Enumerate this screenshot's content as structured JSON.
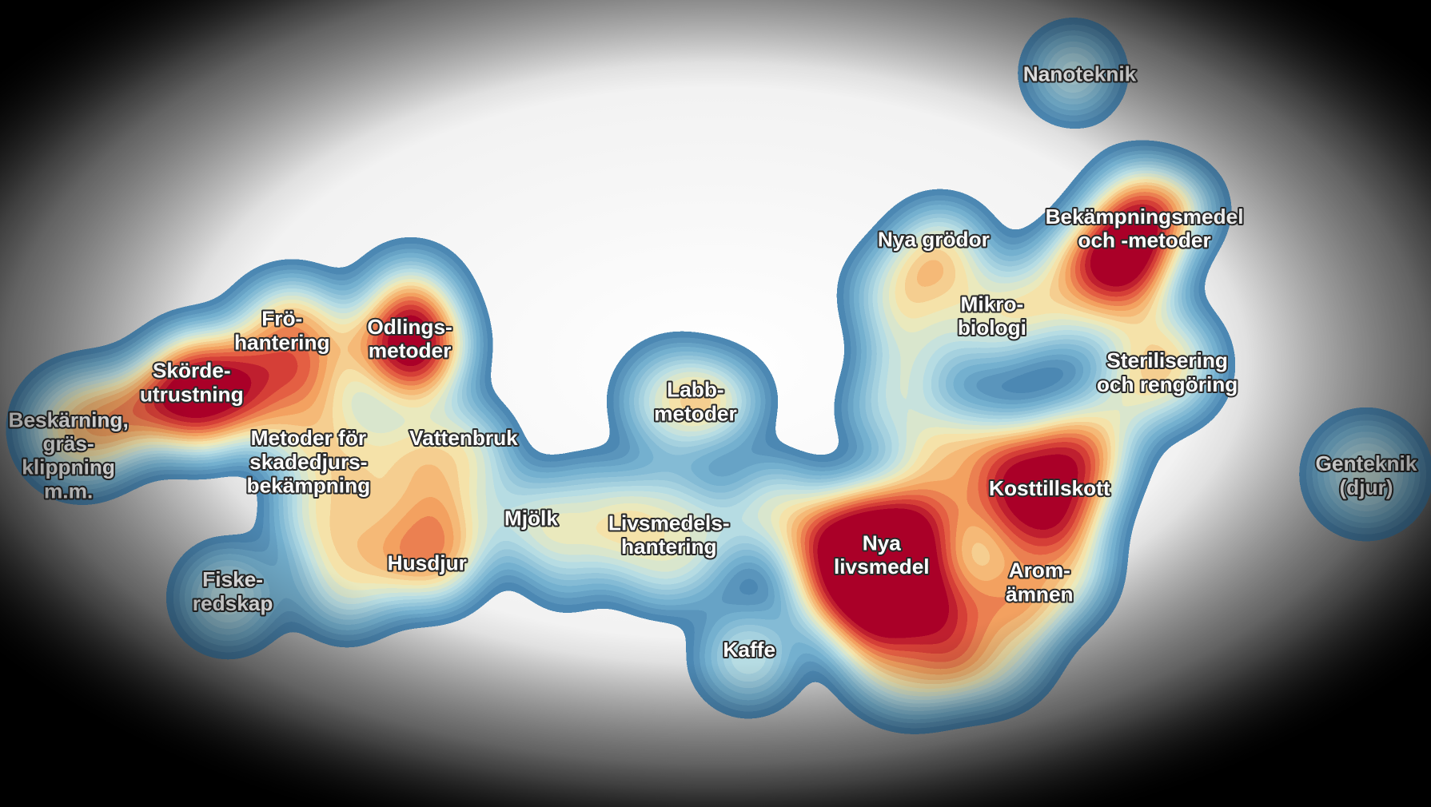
{
  "labels": [
    {
      "lines": [
        "Nanoteknik"
      ]
    },
    {
      "lines": [
        "Bekämpningsmedel",
        "och -metoder"
      ]
    },
    {
      "lines": [
        "Nya grödor"
      ]
    },
    {
      "lines": [
        "Mikro-",
        "biologi"
      ]
    },
    {
      "lines": [
        "Sterilisering",
        "och rengöring"
      ]
    },
    {
      "lines": [
        "Kosttillskott"
      ]
    },
    {
      "lines": [
        "Arom-",
        "ämnen"
      ]
    },
    {
      "lines": [
        "Nya",
        "livsmedel"
      ]
    },
    {
      "lines": [
        "Kaffe"
      ]
    },
    {
      "lines": [
        "Livsmedels-",
        "hantering"
      ]
    },
    {
      "lines": [
        "Labb-",
        "metoder"
      ]
    },
    {
      "lines": [
        "Mjölk"
      ]
    },
    {
      "lines": [
        "Genteknik",
        "(djur)"
      ]
    },
    {
      "lines": [
        "Vattenbruk"
      ]
    },
    {
      "lines": [
        "Husdjur"
      ]
    },
    {
      "lines": [
        "Metoder för",
        "skadedjurs-",
        "bekämpning"
      ]
    },
    {
      "lines": [
        "Odlings-",
        "metoder"
      ]
    },
    {
      "lines": [
        "Frö-",
        "hantering"
      ]
    },
    {
      "lines": [
        "Skörde-",
        "utrustning"
      ]
    },
    {
      "lines": [
        "Beskärning,",
        "gräs-",
        "klippning",
        "m.m."
      ]
    },
    {
      "lines": [
        "Fiske-",
        "redskap"
      ]
    }
  ]
}
